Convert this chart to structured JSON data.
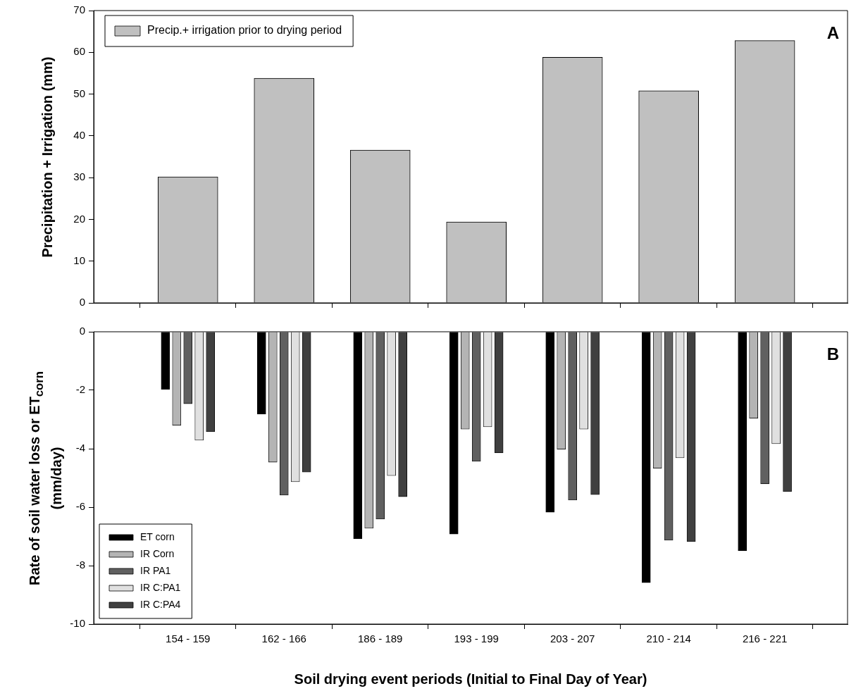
{
  "chart_data": [
    {
      "type": "bar",
      "categories": [
        null,
        null,
        null,
        null,
        null,
        null,
        null
      ],
      "series": [
        {
          "name": "Precip.+ irrigation prior to drying period",
          "color": "#c0c0c0",
          "values": [
            30.2,
            53.8,
            36.6,
            19.4,
            58.8,
            50.8,
            62.8
          ]
        }
      ],
      "ylabel": "Precipitation + Irrigation (mm)",
      "ylim": [
        0,
        70
      ],
      "yticks": [
        0,
        10,
        20,
        30,
        40,
        50,
        60,
        70
      ],
      "legend": "top left",
      "tick_labels": "y",
      "annotations": [
        "A"
      ]
    },
    {
      "type": "bar",
      "categories": [
        "154 - 159",
        "162 - 166",
        "186 - 189",
        "193 - 199",
        "203 - 207",
        "210 - 214",
        "216 - 221"
      ],
      "series": [
        {
          "name": "ET corn",
          "color": "#000000",
          "values": [
            -1.97,
            -2.82,
            -7.08,
            -6.92,
            -6.17,
            -8.58,
            -7.49
          ]
        },
        {
          "name": "IR Corn",
          "color": "#b4b4b4",
          "values": [
            -3.2,
            -4.46,
            -6.72,
            -3.33,
            -4.02,
            -4.67,
            -2.96
          ]
        },
        {
          "name": "IR PA1",
          "color": "#606060",
          "values": [
            -2.46,
            -5.59,
            -6.41,
            -4.43,
            -5.76,
            -7.13,
            -5.2
          ]
        },
        {
          "name": "IR C:PA1",
          "color": "#e0e0e0",
          "values": [
            -3.71,
            -5.13,
            -4.92,
            -3.25,
            -3.33,
            -4.31,
            -3.83
          ]
        },
        {
          "name": "IR C:PA4",
          "color": "#404040",
          "values": [
            -3.42,
            -4.8,
            -5.64,
            -4.14,
            -5.57,
            -7.18,
            -5.47
          ]
        }
      ],
      "ylabel": "Rate of soil water loss or ET$_{corn}$ (mm/day)",
      "xlabel": "Soil drying event periods (Initial to Final Day of Year)",
      "ylim": [
        -10,
        0
      ],
      "yticks": [
        -10,
        -8,
        -6,
        -4,
        -2,
        0
      ],
      "legend": "bottom left",
      "annotations": [
        "B"
      ]
    }
  ]
}
